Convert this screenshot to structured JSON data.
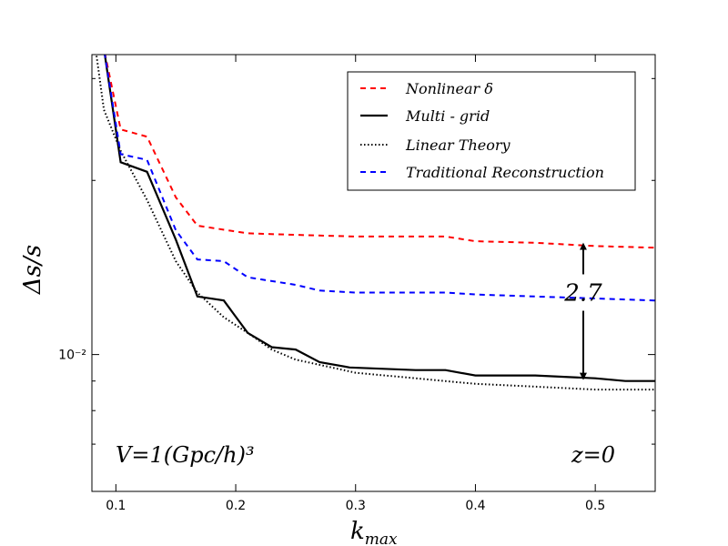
{
  "chart_data": {
    "type": "line",
    "xlabel": "k_max",
    "ylabel": "Δs/s",
    "xlim": [
      0.08,
      0.55
    ],
    "ylim": [
      0.0058,
      0.033
    ],
    "yscale": "log",
    "grid": false,
    "legend_position": "top-right",
    "x_ticks": [
      0.1,
      0.2,
      0.3,
      0.4,
      0.5
    ],
    "x_tick_labels": [
      "0.1",
      "0.2",
      "0.3",
      "0.4",
      "0.5"
    ],
    "y_ticks": [
      0.01
    ],
    "y_tick_labels": [
      "10⁻²"
    ],
    "series": [
      {
        "name": "Nonlinear δ",
        "color": "#ff0000",
        "style": "dashed",
        "x": [
          0.085,
          0.09,
          0.104,
          0.126,
          0.15,
          0.168,
          0.21,
          0.25,
          0.3,
          0.35,
          0.375,
          0.4,
          0.45,
          0.5,
          0.55
        ],
        "y": [
          0.0338,
          0.0338,
          0.0245,
          0.0238,
          0.0187,
          0.0167,
          0.0162,
          0.0161,
          0.016,
          0.016,
          0.016,
          0.0157,
          0.0156,
          0.0154,
          0.0153
        ]
      },
      {
        "name": "Multi - grid",
        "color": "#000000",
        "style": "solid",
        "x": [
          0.087,
          0.09,
          0.104,
          0.126,
          0.15,
          0.168,
          0.19,
          0.21,
          0.23,
          0.25,
          0.27,
          0.295,
          0.35,
          0.375,
          0.4,
          0.45,
          0.5,
          0.525,
          0.55
        ],
        "y": [
          0.0338,
          0.0338,
          0.0215,
          0.0207,
          0.0158,
          0.0126,
          0.0124,
          0.0109,
          0.0103,
          0.0102,
          0.0097,
          0.0095,
          0.0094,
          0.0094,
          0.0092,
          0.0092,
          0.0091,
          0.009,
          0.009
        ]
      },
      {
        "name": "Linear Theory",
        "color": "#000000",
        "style": "dotted",
        "x": [
          0.083,
          0.09,
          0.104,
          0.126,
          0.15,
          0.168,
          0.19,
          0.21,
          0.23,
          0.25,
          0.27,
          0.3,
          0.35,
          0.4,
          0.45,
          0.5,
          0.55
        ],
        "y": [
          0.0338,
          0.0265,
          0.0225,
          0.0185,
          0.0145,
          0.0128,
          0.0116,
          0.0109,
          0.0102,
          0.0098,
          0.0096,
          0.0093,
          0.0091,
          0.0089,
          0.0088,
          0.0087,
          0.0087
        ]
      },
      {
        "name": "Traditional Reconstruction",
        "color": "#0000ff",
        "style": "dashed",
        "x": [
          0.085,
          0.09,
          0.104,
          0.126,
          0.15,
          0.168,
          0.19,
          0.21,
          0.25,
          0.27,
          0.3,
          0.35,
          0.375,
          0.4,
          0.45,
          0.5,
          0.55
        ],
        "y": [
          0.0338,
          0.0338,
          0.0222,
          0.0217,
          0.0164,
          0.0146,
          0.0145,
          0.0136,
          0.0132,
          0.0129,
          0.0128,
          0.0128,
          0.0128,
          0.0127,
          0.0126,
          0.0125,
          0.0124
        ]
      }
    ],
    "annotations": {
      "ratio_text": "2.7",
      "ratio_arrow_x": 0.49,
      "ratio_text_y": 0.0128,
      "ratio_upper_y": 0.0155,
      "ratio_lower_y": 0.0091,
      "volume_text": "V=1(Gpc/h)³",
      "redshift_text": "z=0"
    }
  }
}
